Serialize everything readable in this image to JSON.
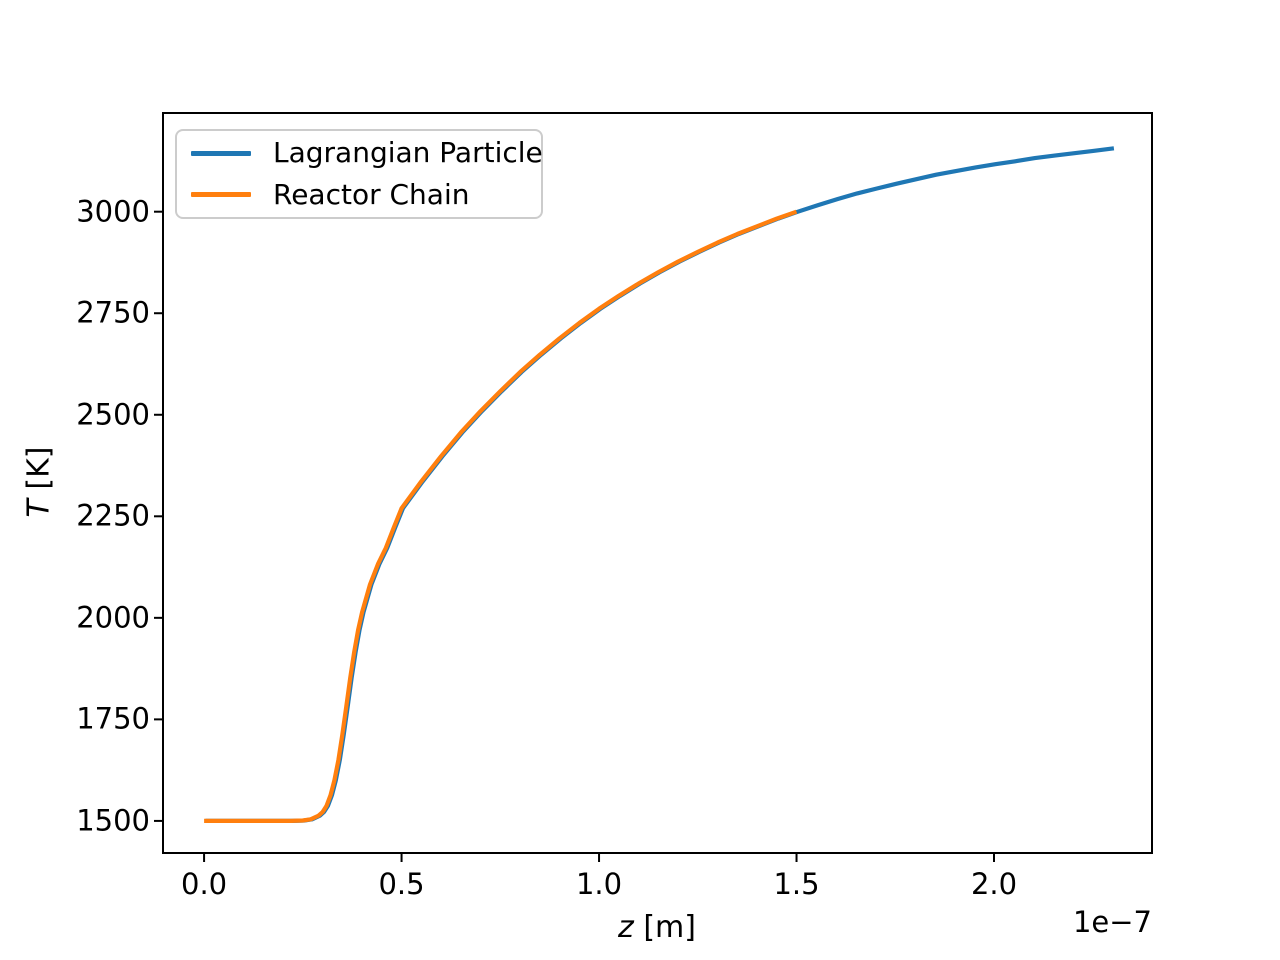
{
  "figure": {
    "background": "#ffffff"
  },
  "chart_data": {
    "type": "line",
    "title": "",
    "xlabel": {
      "var": "z",
      "unit": " [m]"
    },
    "ylabel": {
      "var": "T",
      "unit": " [K]"
    },
    "x_offset_text": "1e−7",
    "x_scale": 1e-07,
    "xlim": [
      -0.104,
      2.4
    ],
    "ylim": [
      1421,
      3243
    ],
    "xticks": {
      "values": [
        0.0,
        0.5,
        1.0,
        1.5,
        2.0
      ],
      "labels": [
        "0.0",
        "0.5",
        "1.0",
        "1.5",
        "2.0"
      ]
    },
    "yticks": {
      "values": [
        1500,
        1750,
        2000,
        2250,
        2500,
        2750,
        3000
      ],
      "labels": [
        "1500",
        "1750",
        "2000",
        "2250",
        "2500",
        "2750",
        "3000"
      ]
    },
    "grid": false,
    "legend_position": "upper left",
    "series": [
      {
        "name": "Lagrangian Particle",
        "color": "#1f77b4",
        "points": [
          [
            0.0,
            1500
          ],
          [
            0.08,
            1500
          ],
          [
            0.16,
            1500
          ],
          [
            0.22,
            1500
          ],
          [
            0.25,
            1501
          ],
          [
            0.27,
            1504
          ],
          [
            0.29,
            1513
          ],
          [
            0.3,
            1522
          ],
          [
            0.31,
            1537
          ],
          [
            0.32,
            1563
          ],
          [
            0.33,
            1600
          ],
          [
            0.34,
            1650
          ],
          [
            0.35,
            1712
          ],
          [
            0.36,
            1782
          ],
          [
            0.37,
            1852
          ],
          [
            0.38,
            1916
          ],
          [
            0.39,
            1970
          ],
          [
            0.4,
            2014
          ],
          [
            0.42,
            2082
          ],
          [
            0.44,
            2132
          ],
          [
            0.46,
            2172
          ],
          [
            0.48,
            2222
          ],
          [
            0.5,
            2270
          ],
          [
            0.55,
            2336
          ],
          [
            0.6,
            2398
          ],
          [
            0.65,
            2456
          ],
          [
            0.7,
            2509
          ],
          [
            0.75,
            2558
          ],
          [
            0.8,
            2605
          ],
          [
            0.85,
            2648
          ],
          [
            0.9,
            2688
          ],
          [
            0.95,
            2726
          ],
          [
            1.0,
            2761
          ],
          [
            1.05,
            2793
          ],
          [
            1.1,
            2823
          ],
          [
            1.15,
            2851
          ],
          [
            1.2,
            2877
          ],
          [
            1.25,
            2901
          ],
          [
            1.3,
            2924
          ],
          [
            1.35,
            2945
          ],
          [
            1.4,
            2964
          ],
          [
            1.45,
            2983
          ],
          [
            1.5,
            3000
          ],
          [
            1.55,
            3016
          ],
          [
            1.6,
            3031
          ],
          [
            1.65,
            3045
          ],
          [
            1.7,
            3057
          ],
          [
            1.75,
            3069
          ],
          [
            1.8,
            3080
          ],
          [
            1.85,
            3091
          ],
          [
            1.9,
            3100
          ],
          [
            1.95,
            3109
          ],
          [
            2.0,
            3117
          ],
          [
            2.05,
            3124
          ],
          [
            2.1,
            3132
          ],
          [
            2.15,
            3138
          ],
          [
            2.2,
            3144
          ],
          [
            2.25,
            3150
          ],
          [
            2.3,
            3156
          ]
        ]
      },
      {
        "name": "Reactor Chain",
        "color": "#ff7f0e",
        "points": [
          [
            0.0,
            1500
          ],
          [
            0.08,
            1500
          ],
          [
            0.16,
            1500
          ],
          [
            0.22,
            1500
          ],
          [
            0.25,
            1501
          ],
          [
            0.27,
            1504
          ],
          [
            0.29,
            1513
          ],
          [
            0.3,
            1522
          ],
          [
            0.31,
            1537
          ],
          [
            0.32,
            1563
          ],
          [
            0.33,
            1600
          ],
          [
            0.34,
            1650
          ],
          [
            0.35,
            1712
          ],
          [
            0.36,
            1782
          ],
          [
            0.37,
            1852
          ],
          [
            0.38,
            1916
          ],
          [
            0.39,
            1970
          ],
          [
            0.4,
            2014
          ],
          [
            0.42,
            2082
          ],
          [
            0.44,
            2132
          ],
          [
            0.46,
            2172
          ],
          [
            0.48,
            2222
          ],
          [
            0.5,
            2270
          ],
          [
            0.55,
            2336
          ],
          [
            0.6,
            2398
          ],
          [
            0.65,
            2456
          ],
          [
            0.7,
            2509
          ],
          [
            0.75,
            2558
          ],
          [
            0.8,
            2605
          ],
          [
            0.85,
            2648
          ],
          [
            0.9,
            2688
          ],
          [
            0.95,
            2726
          ],
          [
            1.0,
            2761
          ],
          [
            1.05,
            2793
          ],
          [
            1.1,
            2823
          ],
          [
            1.15,
            2851
          ],
          [
            1.2,
            2877
          ],
          [
            1.25,
            2901
          ],
          [
            1.3,
            2924
          ],
          [
            1.35,
            2945
          ],
          [
            1.4,
            2964
          ],
          [
            1.45,
            2983
          ],
          [
            1.5,
            3000
          ]
        ]
      }
    ]
  }
}
